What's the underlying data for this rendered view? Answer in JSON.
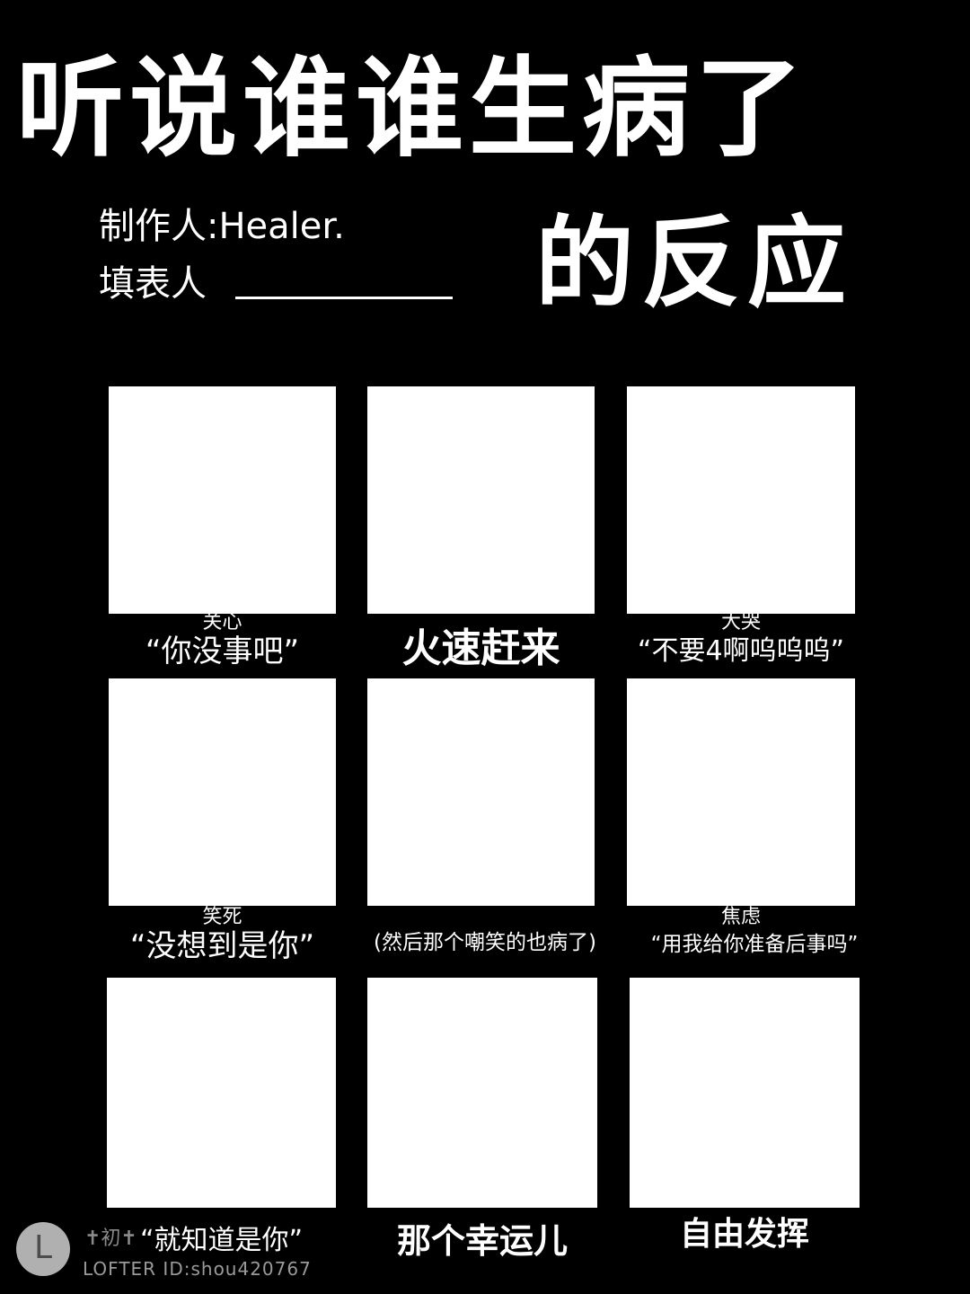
{
  "title": {
    "line1": "听说谁谁生病了",
    "line2": "的反应"
  },
  "credits": {
    "maker": "制作人:Healer.",
    "filler_label": "填表人"
  },
  "cells": [
    {
      "small": "关心",
      "main": "“你没事吧”"
    },
    {
      "small": "",
      "main": "火速赶来"
    },
    {
      "small": "大哭",
      "main": "“不要4啊呜呜呜”"
    },
    {
      "small": "笑死",
      "main": "“没想到是你”"
    },
    {
      "small": "",
      "main": "(然后那个嘲笑的也病了)"
    },
    {
      "small": "焦虑",
      "main": "“用我给你准备后事吗”"
    },
    {
      "small": "",
      "main": "“就知道是你”"
    },
    {
      "small": "",
      "main": "那个幸运儿"
    },
    {
      "small": "",
      "main": "自由发挥"
    }
  ],
  "watermark": {
    "logo_letter": "L",
    "name": "✝初✝",
    "id": "LOFTER ID:shou420767"
  }
}
